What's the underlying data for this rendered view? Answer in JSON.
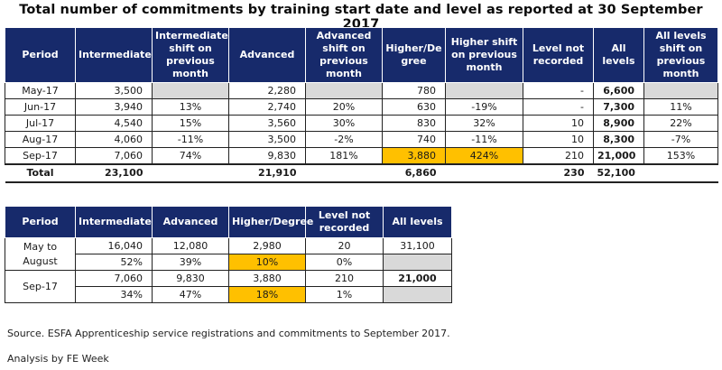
{
  "title": "Total number of commitments by training start date and level as reported at 30 September 2017",
  "table1": {
    "headers": [
      "Period",
      "Intermediate",
      "Intermediate shift on previous month",
      "Advanced",
      "Advanced shift on previous month",
      "Higher/De gree",
      "Higher shift on previous month",
      "Level not recorded",
      "All levels",
      "All levels shift on previous month"
    ],
    "rows": [
      [
        "May-17",
        "3,500",
        "",
        "2,280",
        "",
        "780",
        "",
        "-",
        "6,600",
        ""
      ],
      [
        "Jun-17",
        "3,940",
        "13%",
        "2,740",
        "20%",
        "630",
        "-19%",
        "-",
        "7,300",
        "11%"
      ],
      [
        "Jul-17",
        "4,540",
        "15%",
        "3,560",
        "30%",
        "830",
        "32%",
        "10",
        "8,900",
        "22%"
      ],
      [
        "Aug-17",
        "4,060",
        "-11%",
        "3,500",
        "-2%",
        "740",
        "-11%",
        "10",
        "8,300",
        "-7%"
      ],
      [
        "Sep-17",
        "7,060",
        "74%",
        "9,830",
        "181%",
        "3,880",
        "424%",
        "210",
        "21,000",
        "153%"
      ]
    ],
    "total": [
      "Total",
      "23,100",
      "",
      "21,910",
      "",
      "6,860",
      "",
      "230",
      "52,100",
      ""
    ]
  },
  "table2": {
    "headers": [
      "Period",
      "Intermediate",
      "Advanced",
      "Higher/Degree",
      "Level not recorded",
      "All levels"
    ],
    "groups": [
      {
        "period": "May to August",
        "values": [
          "16,040",
          "12,080",
          "2,980",
          "20",
          "31,100"
        ],
        "shares": [
          "52%",
          "39%",
          "10%",
          "0%",
          ""
        ]
      },
      {
        "period": "Sep-17",
        "values": [
          "7,060",
          "9,830",
          "3,880",
          "210",
          "21,000"
        ],
        "shares": [
          "34%",
          "47%",
          "18%",
          "1%",
          ""
        ]
      }
    ]
  },
  "footnotes": {
    "source": "Source. ESFA Apprenticeship service registrations and commitments to September 2017.",
    "analysis": "Analysis by FE Week"
  },
  "colors": {
    "header_bg": "#172a6b",
    "highlight": "#ffc000",
    "empty_cell": "#d9d9d9"
  }
}
